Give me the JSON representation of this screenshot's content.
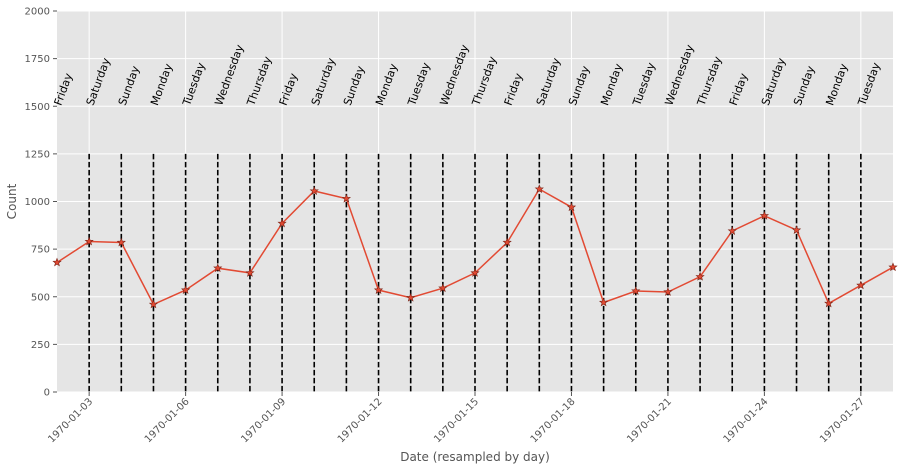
{
  "chart_data": {
    "type": "line",
    "title": "",
    "xlabel": "Date (resampled by day)",
    "ylabel": "Count",
    "ylim": [
      0,
      2000
    ],
    "xlim": [
      "1970-01-02",
      "1970-01-28"
    ],
    "yticks": [
      0,
      250,
      500,
      750,
      1000,
      1250,
      1500,
      1750,
      2000
    ],
    "xticks": [
      "1970-01-03",
      "1970-01-06",
      "1970-01-09",
      "1970-01-12",
      "1970-01-15",
      "1970-01-18",
      "1970-01-21",
      "1970-01-24",
      "1970-01-27"
    ],
    "grid": true,
    "colors": {
      "line": "#e24a33",
      "marker": "#e24a33",
      "vline": "#000000",
      "plot_bg": "#e5e5e5",
      "grid": "#ffffff",
      "text": "#555555",
      "day_label": "#000000"
    },
    "series": [
      {
        "x": [
          "1970-01-02",
          "1970-01-03",
          "1970-01-04",
          "1970-01-05",
          "1970-01-06",
          "1970-01-07",
          "1970-01-08",
          "1970-01-09",
          "1970-01-10",
          "1970-01-11",
          "1970-01-12",
          "1970-01-13",
          "1970-01-14",
          "1970-01-15",
          "1970-01-16",
          "1970-01-17",
          "1970-01-18",
          "1970-01-19",
          "1970-01-20",
          "1970-01-21",
          "1970-01-22",
          "1970-01-23",
          "1970-01-24",
          "1970-01-25",
          "1970-01-26",
          "1970-01-27",
          "1970-01-28"
        ],
        "values": [
          680,
          790,
          785,
          460,
          535,
          650,
          625,
          885,
          1055,
          1015,
          535,
          495,
          545,
          625,
          785,
          1065,
          970,
          470,
          530,
          525,
          605,
          845,
          925,
          850,
          465,
          560,
          655
        ]
      }
    ],
    "vlines": [
      "1970-01-03",
      "1970-01-04",
      "1970-01-05",
      "1970-01-06",
      "1970-01-07",
      "1970-01-08",
      "1970-01-09",
      "1970-01-10",
      "1970-01-11",
      "1970-01-12",
      "1970-01-13",
      "1970-01-14",
      "1970-01-15",
      "1970-01-16",
      "1970-01-17",
      "1970-01-18",
      "1970-01-19",
      "1970-01-20",
      "1970-01-21",
      "1970-01-22",
      "1970-01-23",
      "1970-01-24",
      "1970-01-25",
      "1970-01-26",
      "1970-01-27"
    ],
    "day_labels": [
      {
        "date": "1970-01-02",
        "label": "Friday"
      },
      {
        "date": "1970-01-03",
        "label": "Saturday"
      },
      {
        "date": "1970-01-04",
        "label": "Sunday"
      },
      {
        "date": "1970-01-05",
        "label": "Monday"
      },
      {
        "date": "1970-01-06",
        "label": "Tuesday"
      },
      {
        "date": "1970-01-07",
        "label": "Wednesday"
      },
      {
        "date": "1970-01-08",
        "label": "Thursday"
      },
      {
        "date": "1970-01-09",
        "label": "Friday"
      },
      {
        "date": "1970-01-10",
        "label": "Saturday"
      },
      {
        "date": "1970-01-11",
        "label": "Sunday"
      },
      {
        "date": "1970-01-12",
        "label": "Monday"
      },
      {
        "date": "1970-01-13",
        "label": "Tuesday"
      },
      {
        "date": "1970-01-14",
        "label": "Wednesday"
      },
      {
        "date": "1970-01-15",
        "label": "Thursday"
      },
      {
        "date": "1970-01-16",
        "label": "Friday"
      },
      {
        "date": "1970-01-17",
        "label": "Saturday"
      },
      {
        "date": "1970-01-18",
        "label": "Sunday"
      },
      {
        "date": "1970-01-19",
        "label": "Monday"
      },
      {
        "date": "1970-01-20",
        "label": "Tuesday"
      },
      {
        "date": "1970-01-21",
        "label": "Wednesday"
      },
      {
        "date": "1970-01-22",
        "label": "Thursday"
      },
      {
        "date": "1970-01-23",
        "label": "Friday"
      },
      {
        "date": "1970-01-24",
        "label": "Saturday"
      },
      {
        "date": "1970-01-25",
        "label": "Sunday"
      },
      {
        "date": "1970-01-26",
        "label": "Monday"
      },
      {
        "date": "1970-01-27",
        "label": "Tuesday"
      }
    ]
  }
}
